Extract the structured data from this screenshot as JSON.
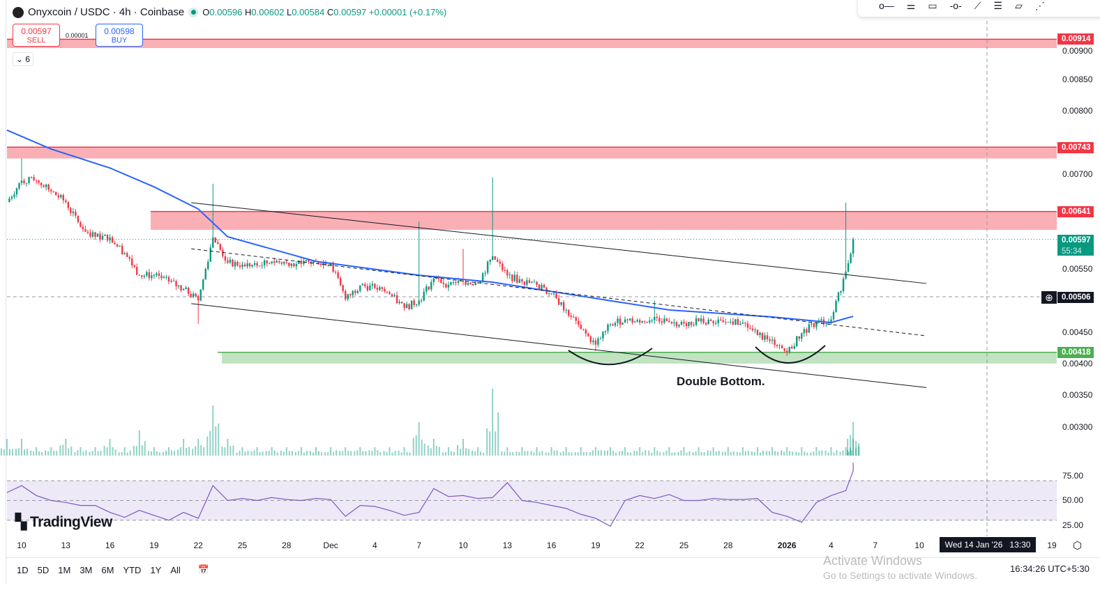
{
  "header": {
    "symbol": "Onyxcoin / USDC · 4h · Coinbase",
    "o_label": "O",
    "o": "0.00596",
    "h_label": "H",
    "h": "0.00602",
    "l_label": "L",
    "l": "0.00584",
    "c_label": "C",
    "c": "0.00597",
    "change": "+0.00001 (+0.17%)"
  },
  "trade": {
    "sell_price": "0.00597",
    "sell_label": "SELL",
    "buy_price": "0.00598",
    "buy_label": "BUY",
    "spread": "0.00001"
  },
  "indicators_collapsed": "6",
  "toolbar_icons": [
    "horizontal-ray-icon",
    "parallel-lines-icon",
    "rectangle-icon",
    "horizontal-line-icon",
    "trend-line-icon",
    "fib-icon",
    "channel-icon",
    "pitchfork-icon"
  ],
  "price_tags": {
    "z914": "0.00914",
    "z743": "0.00743",
    "z641": "0.00641",
    "last": "0.00597",
    "countdown": "55:34",
    "cross": "0.00506",
    "z418": "0.00418"
  },
  "colors": {
    "up": "#089981",
    "down": "#f23645",
    "ma": "#2962ff",
    "rsi": "#7e57c2",
    "resistance": "#f23645",
    "support": "#4caf50"
  },
  "chart_data": {
    "type": "candlestick",
    "title": "Onyxcoin / USDC · 4h · Coinbase",
    "price_ticks": [
      "0.00900",
      "0.00850",
      "0.00800",
      "0.00700",
      "0.00550",
      "0.00450",
      "0.00400",
      "0.00350",
      "0.00300"
    ],
    "ylim": [
      0.0027,
      0.0095
    ],
    "time_ticks": [
      {
        "d": "2025-11-10",
        "label": "10"
      },
      {
        "d": "2025-11-13",
        "label": "13"
      },
      {
        "d": "2025-11-16",
        "label": "16"
      },
      {
        "d": "2025-11-19",
        "label": "19"
      },
      {
        "d": "2025-11-22",
        "label": "22"
      },
      {
        "d": "2025-11-25",
        "label": "25"
      },
      {
        "d": "2025-11-28",
        "label": "28"
      },
      {
        "d": "2025-12-01",
        "label": "Dec"
      },
      {
        "d": "2025-12-04",
        "label": "4"
      },
      {
        "d": "2025-12-07",
        "label": "7"
      },
      {
        "d": "2025-12-10",
        "label": "10"
      },
      {
        "d": "2025-12-13",
        "label": "13"
      },
      {
        "d": "2025-12-16",
        "label": "16"
      },
      {
        "d": "2025-12-19",
        "label": "19"
      },
      {
        "d": "2025-12-22",
        "label": "22"
      },
      {
        "d": "2025-12-25",
        "label": "25"
      },
      {
        "d": "2025-12-28",
        "label": "28"
      },
      {
        "d": "2026-01-01",
        "label": "2026"
      },
      {
        "d": "2026-01-04",
        "label": "4"
      },
      {
        "d": "2026-01-07",
        "label": "7"
      },
      {
        "d": "2026-01-10",
        "label": "10"
      },
      {
        "d": "2026-01-19",
        "label": "19"
      }
    ],
    "closes": [
      {
        "d": "2025-11-09",
        "c": 0.00656
      },
      {
        "d": "2025-11-10",
        "c": 0.0069,
        "h": 0.00725
      },
      {
        "d": "2025-11-11",
        "c": 0.0069
      },
      {
        "d": "2025-11-12",
        "c": 0.00673
      },
      {
        "d": "2025-11-13",
        "c": 0.00656
      },
      {
        "d": "2025-11-14",
        "c": 0.00617
      },
      {
        "d": "2025-11-15",
        "c": 0.00601
      },
      {
        "d": "2025-11-16",
        "c": 0.006
      },
      {
        "d": "2025-11-17",
        "c": 0.00575
      },
      {
        "d": "2025-11-18",
        "c": 0.0054
      },
      {
        "d": "2025-11-19",
        "c": 0.0054
      },
      {
        "d": "2025-11-20",
        "c": 0.0053
      },
      {
        "d": "2025-11-21",
        "c": 0.00518
      },
      {
        "d": "2025-11-22",
        "c": 0.005,
        "l": 0.00463
      },
      {
        "d": "2025-11-23",
        "c": 0.006,
        "h": 0.00685
      },
      {
        "d": "2025-11-24",
        "c": 0.0056
      },
      {
        "d": "2025-11-25",
        "c": 0.00557
      },
      {
        "d": "2025-11-26",
        "c": 0.00555
      },
      {
        "d": "2025-11-27",
        "c": 0.00562
      },
      {
        "d": "2025-11-28",
        "c": 0.0056
      },
      {
        "d": "2025-11-29",
        "c": 0.00558
      },
      {
        "d": "2025-11-30",
        "c": 0.00562
      },
      {
        "d": "2025-12-01",
        "c": 0.0056
      },
      {
        "d": "2025-12-02",
        "c": 0.00502
      },
      {
        "d": "2025-12-03",
        "c": 0.00524
      },
      {
        "d": "2025-12-04",
        "c": 0.0052
      },
      {
        "d": "2025-12-05",
        "c": 0.0051
      },
      {
        "d": "2025-12-06",
        "c": 0.00488
      },
      {
        "d": "2025-12-07",
        "c": 0.005,
        "h": 0.00625
      },
      {
        "d": "2025-12-08",
        "c": 0.00535
      },
      {
        "d": "2025-12-09",
        "c": 0.00525
      },
      {
        "d": "2025-12-10",
        "c": 0.0053,
        "h": 0.00582
      },
      {
        "d": "2025-12-11",
        "c": 0.00528
      },
      {
        "d": "2025-12-12",
        "c": 0.0057,
        "h": 0.00695
      },
      {
        "d": "2025-12-13",
        "c": 0.0054
      },
      {
        "d": "2025-12-14",
        "c": 0.0053
      },
      {
        "d": "2025-12-15",
        "c": 0.00525
      },
      {
        "d": "2025-12-16",
        "c": 0.0051
      },
      {
        "d": "2025-12-17",
        "c": 0.00485
      },
      {
        "d": "2025-12-18",
        "c": 0.00455
      },
      {
        "d": "2025-12-19",
        "c": 0.0043,
        "l": 0.0042
      },
      {
        "d": "2025-12-20",
        "c": 0.00462
      },
      {
        "d": "2025-12-21",
        "c": 0.0047
      },
      {
        "d": "2025-12-22",
        "c": 0.00465
      },
      {
        "d": "2025-12-23",
        "c": 0.00474,
        "h": 0.005
      },
      {
        "d": "2025-12-24",
        "c": 0.00466
      },
      {
        "d": "2025-12-25",
        "c": 0.00464
      },
      {
        "d": "2025-12-26",
        "c": 0.00467
      },
      {
        "d": "2025-12-27",
        "c": 0.00464
      },
      {
        "d": "2025-12-28",
        "c": 0.00466
      },
      {
        "d": "2025-12-29",
        "c": 0.00465
      },
      {
        "d": "2025-12-30",
        "c": 0.00445
      },
      {
        "d": "2025-12-31",
        "c": 0.00438
      },
      {
        "d": "2026-01-01",
        "c": 0.00418,
        "l": 0.00412
      },
      {
        "d": "2026-01-02",
        "c": 0.00448
      },
      {
        "d": "2026-01-03",
        "c": 0.00465
      },
      {
        "d": "2026-01-04",
        "c": 0.0047
      },
      {
        "d": "2026-01-05",
        "c": 0.00546,
        "h": 0.00655
      },
      {
        "d": "2026-01-05T12",
        "c": 0.00597
      }
    ],
    "moving_average": [
      {
        "d": "2025-11-09",
        "v": 0.0077
      },
      {
        "d": "2025-11-12",
        "v": 0.0074
      },
      {
        "d": "2025-11-16",
        "v": 0.0071
      },
      {
        "d": "2025-11-19",
        "v": 0.0068
      },
      {
        "d": "2025-11-22",
        "v": 0.00645
      },
      {
        "d": "2025-11-24",
        "v": 0.00601
      },
      {
        "d": "2025-11-30",
        "v": 0.00562
      },
      {
        "d": "2025-12-07",
        "v": 0.0054
      },
      {
        "d": "2025-12-12",
        "v": 0.00529
      },
      {
        "d": "2025-12-18",
        "v": 0.00507
      },
      {
        "d": "2025-12-24",
        "v": 0.00485
      },
      {
        "d": "2025-12-31",
        "v": 0.00474
      },
      {
        "d": "2026-01-04",
        "v": 0.00465
      },
      {
        "d": "2026-01-05T12",
        "v": 0.00475
      }
    ],
    "volume": [
      2,
      2,
      1,
      1,
      2,
      1,
      1,
      2,
      1,
      3,
      1,
      1,
      2,
      2,
      6,
      2,
      1,
      1,
      1,
      1,
      1,
      1,
      1,
      1,
      1,
      1,
      1,
      1,
      4,
      2,
      1,
      2,
      1,
      8,
      1,
      1,
      1,
      1,
      1,
      1,
      1,
      1,
      1,
      1,
      1,
      1,
      1,
      1,
      1,
      1,
      1,
      1,
      1,
      1,
      1,
      1,
      1,
      1,
      2,
      4
    ],
    "rsi": {
      "ticks": [
        "75.00",
        "50.00",
        "25.00"
      ],
      "upper": 70,
      "lower": 30,
      "values": [
        58,
        65,
        55,
        50,
        48,
        45,
        45,
        38,
        33,
        40,
        35,
        30,
        38,
        32,
        65,
        50,
        52,
        50,
        53,
        51,
        50,
        52,
        51,
        34,
        45,
        44,
        40,
        35,
        38,
        62,
        54,
        55,
        52,
        53,
        68,
        50,
        48,
        45,
        42,
        36,
        32,
        24,
        50,
        55,
        52,
        56,
        50,
        50,
        52,
        51,
        51,
        52,
        38,
        34,
        28,
        48,
        55,
        60,
        80,
        88
      ]
    },
    "zones": [
      {
        "top": 0.00914,
        "bottom": 0.009,
        "kind": "resistance"
      },
      {
        "top": 0.00743,
        "bottom": 0.00725,
        "kind": "resistance"
      },
      {
        "top": 0.00641,
        "bottom": 0.00612,
        "kind": "resistance"
      },
      {
        "top": 0.00418,
        "bottom": 0.004,
        "kind": "support"
      }
    ],
    "channel": {
      "upper": [
        {
          "d": "2025-11-22",
          "v": 0.00655
        },
        {
          "d": "2026-01-10",
          "v": 0.00527
        }
      ],
      "lower": [
        {
          "d": "2025-11-22",
          "v": 0.00495
        },
        {
          "d": "2026-01-10",
          "v": 0.00362
        }
      ],
      "mid_dashed": [
        {
          "d": "2025-11-22",
          "v": 0.00582
        },
        {
          "d": "2026-01-10",
          "v": 0.00444
        }
      ]
    },
    "annotation": "Double Bottom.",
    "crosshair": {
      "price": "0.00506",
      "date": "Wed 14 Jan '26",
      "time": "13:30"
    }
  },
  "branding": "TradingView",
  "bottom": {
    "ranges": [
      "1D",
      "5D",
      "1M",
      "3M",
      "6M",
      "YTD",
      "1Y",
      "All"
    ],
    "clock": "16:34:26 UTC+5:30"
  },
  "watermark": {
    "line1": "Activate Windows",
    "line2": "Go to Settings to activate Windows."
  }
}
